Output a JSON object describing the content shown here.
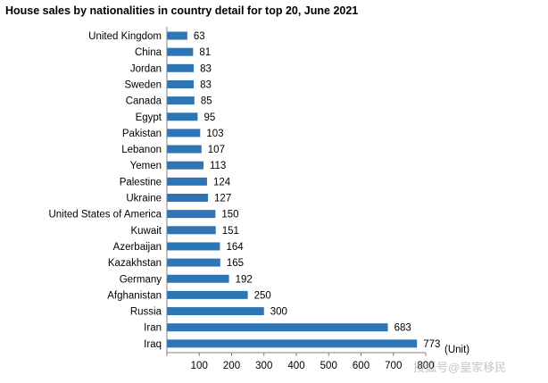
{
  "chart_data": {
    "type": "bar",
    "orientation": "horizontal",
    "title": "House sales by nationalities in country detail for top 20, June 2021",
    "categories": [
      "United Kingdom",
      "China",
      "Jordan",
      "Sweden",
      "Canada",
      "Egypt",
      "Pakistan",
      "Lebanon",
      "Yemen",
      "Palestine",
      "Ukraine",
      "United States of America",
      "Kuwait",
      "Azerbaijan",
      "Kazakhstan",
      "Germany",
      "Afghanistan",
      "Russia",
      "Iran",
      "Iraq"
    ],
    "values": [
      63,
      81,
      83,
      83,
      85,
      95,
      103,
      107,
      113,
      124,
      127,
      150,
      151,
      164,
      165,
      192,
      250,
      300,
      683,
      773
    ],
    "xlim": [
      0,
      800
    ],
    "xticks": [
      100,
      200,
      300,
      400,
      500,
      600,
      700,
      800
    ],
    "unit_label": "(Unit)",
    "bar_color": "#2e75b6",
    "data_labels": true,
    "legend": "none"
  },
  "watermark": {
    "text": "搜狐号@皇家移民"
  }
}
